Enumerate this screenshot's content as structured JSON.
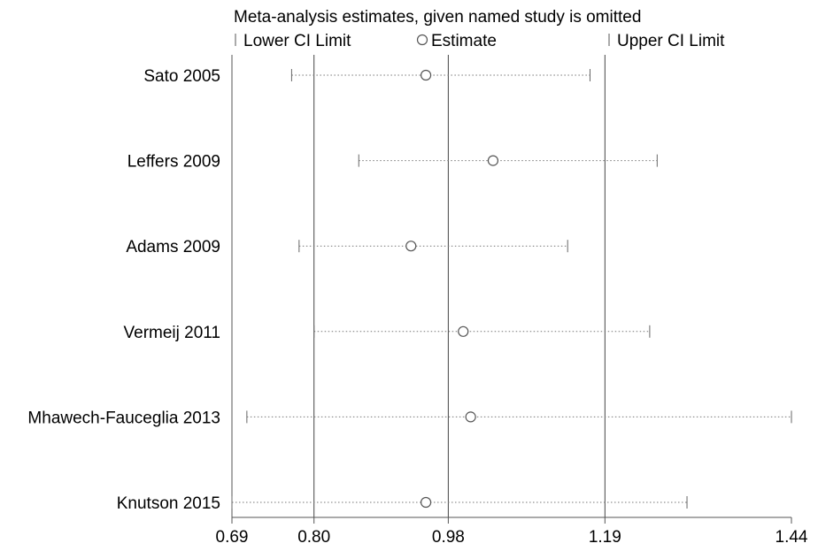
{
  "chart_data": {
    "type": "scatter",
    "title": "Meta-analysis estimates, given named study is omitted",
    "legend": {
      "placement": "top",
      "entries": [
        "Lower CI Limit",
        "Estimate",
        "Upper CI Limit"
      ]
    },
    "xlim": [
      0.69,
      1.44
    ],
    "x_ticks": [
      "0.69",
      "0.80",
      "0.98",
      "1.19",
      "1.44"
    ],
    "reference_lines": [
      0.8,
      0.98,
      1.19
    ],
    "xlabel": "",
    "ylabel": "",
    "studies": [
      {
        "name": "Sato 2005",
        "lower": 0.77,
        "estimate": 0.95,
        "upper": 1.17
      },
      {
        "name": "Leffers 2009",
        "lower": 0.86,
        "estimate": 1.04,
        "upper": 1.26
      },
      {
        "name": "Adams 2009",
        "lower": 0.78,
        "estimate": 0.93,
        "upper": 1.14
      },
      {
        "name": "Vermeij 2011",
        "lower": 0.8,
        "estimate": 1.0,
        "upper": 1.25
      },
      {
        "name": "Mhawech-Fauceglia 2013",
        "lower": 0.71,
        "estimate": 1.01,
        "upper": 1.44
      },
      {
        "name": "Knutson 2015",
        "lower": 0.69,
        "estimate": 0.95,
        "upper": 1.3
      }
    ]
  }
}
